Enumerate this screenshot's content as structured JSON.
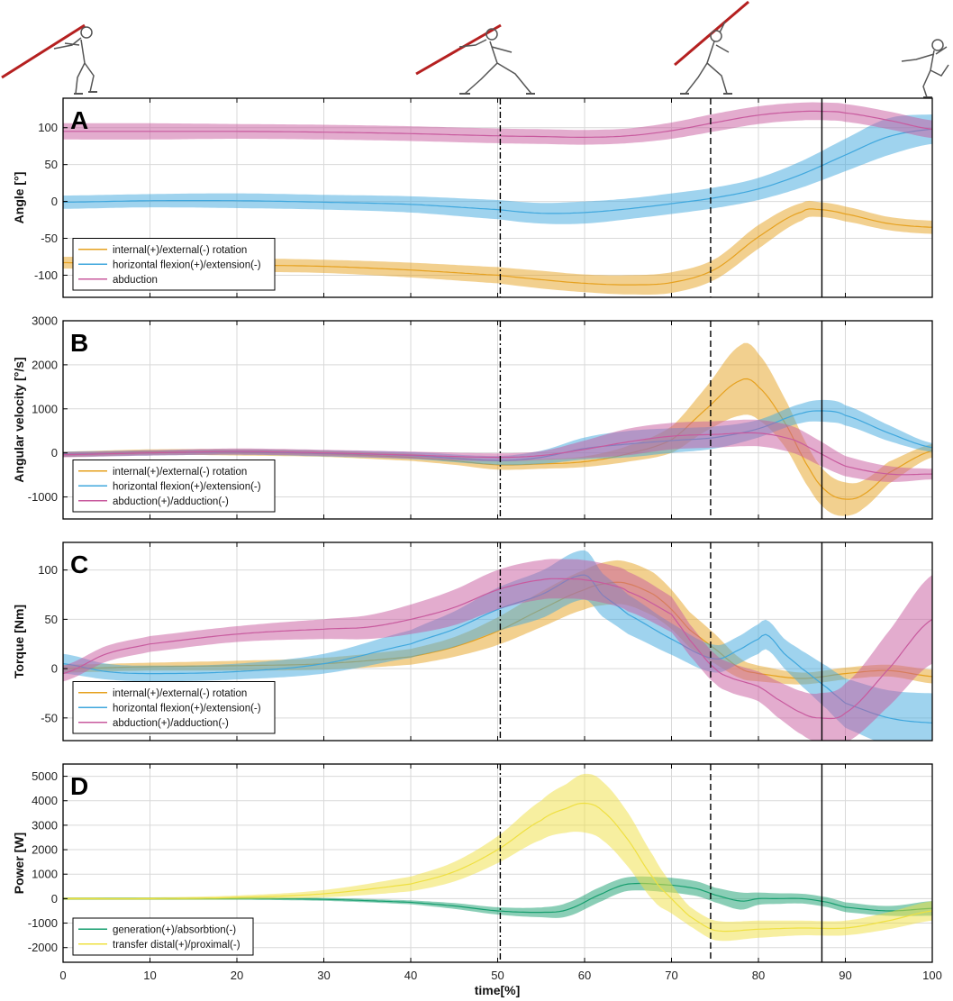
{
  "figure": {
    "xlabel": "time[%]",
    "x_ticks": [
      "0",
      "10",
      "20",
      "30",
      "40",
      "50",
      "60",
      "70",
      "80",
      "90",
      "100"
    ],
    "event_lines": [
      {
        "name": "dash-dot",
        "x": 50.3
      },
      {
        "name": "dashed",
        "x": 74.5
      },
      {
        "name": "solid",
        "x": 87.3
      }
    ],
    "thrower_figures": [
      "thrower-figure-start",
      "thrower-figure-plant",
      "thrower-figure-delivery",
      "thrower-figure-release"
    ]
  },
  "colors": {
    "orange": "#E6A11F",
    "blue": "#3FA7DD",
    "pink": "#C85A9E",
    "green": "#169E6E",
    "yellow": "#EFE041"
  },
  "chart_data": [
    {
      "type": "area",
      "label": "A",
      "ylabel": "Angle [°]",
      "ylim": [
        -130,
        140
      ],
      "y_ticks": [
        100,
        50,
        0,
        -50,
        -100
      ],
      "legend": "bottom-left",
      "series": [
        {
          "name": "internal(+)/external(-) rotation",
          "color": "orange",
          "x": [
            0,
            10,
            20,
            30,
            40,
            50,
            55,
            60,
            65,
            70,
            75,
            80,
            85,
            87,
            90,
            95,
            100
          ],
          "values": [
            -83,
            -84,
            -86,
            -88,
            -93,
            -100,
            -106,
            -111,
            -113,
            -110,
            -92,
            -48,
            -14,
            -11,
            -17,
            -30,
            -35
          ],
          "band": [
            8,
            8,
            9,
            9,
            10,
            11,
            12,
            12,
            13,
            14,
            14,
            16,
            12,
            10,
            10,
            9,
            9
          ]
        },
        {
          "name": "horizontal flexion(+)/extension(-)",
          "color": "blue",
          "x": [
            0,
            10,
            20,
            30,
            40,
            50,
            55,
            60,
            65,
            70,
            75,
            80,
            85,
            90,
            95,
            100
          ],
          "values": [
            -1,
            1,
            1,
            -1,
            -4,
            -11,
            -16,
            -15,
            -10,
            -3,
            5,
            17,
            37,
            63,
            88,
            98
          ],
          "band": [
            9,
            9,
            10,
            10,
            11,
            13,
            14,
            15,
            14,
            14,
            14,
            15,
            18,
            22,
            25,
            20
          ]
        },
        {
          "name": "abduction",
          "color": "pink",
          "x": [
            0,
            10,
            20,
            30,
            40,
            50,
            55,
            60,
            65,
            70,
            75,
            80,
            85,
            88,
            90,
            95,
            100
          ],
          "values": [
            95,
            95,
            95,
            94,
            92,
            89,
            88,
            87,
            89,
            96,
            107,
            117,
            122,
            122,
            120,
            110,
            98
          ],
          "band": [
            11,
            11,
            10,
            10,
            10,
            10,
            10,
            10,
            10,
            11,
            12,
            12,
            12,
            12,
            12,
            12,
            12
          ]
        }
      ]
    },
    {
      "type": "area",
      "label": "B",
      "ylabel": "Angular velocity [°/s]",
      "ylim": [
        -1500,
        3000
      ],
      "y_ticks": [
        3000,
        2000,
        1000,
        0,
        -1000
      ],
      "legend": "bottom-left",
      "series": [
        {
          "name": "internal(+)/external(-) rotation",
          "color": "orange",
          "x": [
            0,
            10,
            20,
            30,
            40,
            45,
            50,
            55,
            60,
            65,
            70,
            74,
            78,
            80,
            83,
            86,
            88,
            90,
            92,
            95,
            100
          ],
          "values": [
            -30,
            20,
            10,
            -20,
            -100,
            -180,
            -270,
            -250,
            -200,
            -20,
            300,
            1000,
            1650,
            1500,
            700,
            -400,
            -900,
            -1050,
            -950,
            -450,
            50
          ],
          "band": [
            60,
            60,
            70,
            70,
            80,
            90,
            110,
            110,
            120,
            180,
            300,
            500,
            800,
            750,
            550,
            450,
            420,
            380,
            320,
            250,
            150
          ]
        },
        {
          "name": "horizontal flexion(+)/extension(-)",
          "color": "blue",
          "x": [
            0,
            10,
            20,
            30,
            40,
            50,
            55,
            60,
            65,
            70,
            75,
            80,
            85,
            88,
            90,
            95,
            100
          ],
          "values": [
            -30,
            0,
            20,
            -10,
            -60,
            -170,
            -100,
            100,
            200,
            280,
            350,
            550,
            900,
            950,
            850,
            450,
            120
          ],
          "band": [
            60,
            60,
            60,
            70,
            80,
            100,
            150,
            250,
            300,
            280,
            250,
            200,
            220,
            250,
            230,
            180,
            100
          ]
        },
        {
          "name": "abduction(+)/adduction(-)",
          "color": "pink",
          "x": [
            0,
            10,
            20,
            30,
            40,
            50,
            55,
            60,
            65,
            70,
            75,
            80,
            84,
            87,
            90,
            95,
            100
          ],
          "values": [
            -40,
            0,
            30,
            0,
            -50,
            -100,
            -60,
            80,
            250,
            380,
            420,
            450,
            300,
            0,
            -300,
            -480,
            -480
          ],
          "band": [
            60,
            60,
            70,
            70,
            80,
            90,
            100,
            200,
            300,
            300,
            300,
            300,
            300,
            280,
            230,
            180,
            120
          ]
        }
      ]
    },
    {
      "type": "area",
      "label": "C",
      "ylabel": "Torque [Nm]",
      "ylim": [
        -73,
        128
      ],
      "y_ticks": [
        100,
        50,
        0,
        -50
      ],
      "legend": "bottom-left",
      "series": [
        {
          "name": "internal(+)/external(-) rotation",
          "color": "orange",
          "x": [
            0,
            10,
            20,
            30,
            40,
            45,
            50,
            55,
            60,
            63,
            65,
            68,
            70,
            72,
            75,
            78,
            80,
            85,
            90,
            95,
            100
          ],
          "values": [
            0,
            2,
            3,
            5,
            12,
            22,
            38,
            60,
            80,
            87,
            86,
            75,
            60,
            40,
            20,
            0,
            -5,
            -10,
            -5,
            -2,
            -8
          ],
          "band": [
            4,
            4,
            5,
            6,
            8,
            10,
            14,
            18,
            20,
            22,
            22,
            22,
            20,
            18,
            15,
            10,
            8,
            6,
            6,
            6,
            7
          ]
        },
        {
          "name": "horizontal flexion(+)/extension(-)",
          "color": "blue",
          "x": [
            0,
            5,
            10,
            20,
            30,
            40,
            45,
            50,
            55,
            60,
            62,
            65,
            70,
            75,
            78,
            80,
            81,
            83,
            85,
            88,
            90,
            95,
            100
          ],
          "values": [
            5,
            -3,
            -5,
            -3,
            5,
            25,
            40,
            60,
            75,
            95,
            75,
            55,
            30,
            10,
            20,
            30,
            34,
            15,
            0,
            -20,
            -35,
            -50,
            -55
          ],
          "band": [
            10,
            8,
            8,
            8,
            10,
            14,
            18,
            22,
            24,
            25,
            22,
            20,
            16,
            14,
            14,
            15,
            15,
            15,
            18,
            22,
            25,
            28,
            30
          ]
        },
        {
          "name": "abduction(+)/adduction(-)",
          "color": "pink",
          "x": [
            0,
            5,
            10,
            20,
            30,
            35,
            40,
            45,
            50,
            55,
            58,
            60,
            63,
            65,
            70,
            72,
            75,
            77,
            80,
            82,
            85,
            87,
            90,
            95,
            100
          ],
          "values": [
            -5,
            15,
            25,
            35,
            40,
            42,
            50,
            62,
            80,
            90,
            91,
            90,
            85,
            78,
            55,
            30,
            0,
            -10,
            -18,
            -30,
            -45,
            -50,
            -45,
            0,
            50
          ],
          "band": [
            8,
            8,
            8,
            8,
            10,
            12,
            15,
            18,
            20,
            20,
            20,
            20,
            20,
            20,
            18,
            16,
            15,
            15,
            15,
            18,
            22,
            25,
            30,
            38,
            45
          ]
        }
      ]
    },
    {
      "type": "area",
      "label": "D",
      "ylabel": "Power [W]",
      "ylim": [
        -2600,
        5500
      ],
      "y_ticks": [
        5000,
        4000,
        3000,
        2000,
        1000,
        0,
        -1000,
        -2000
      ],
      "legend": "bottom-left",
      "series": [
        {
          "name": "generation(+)/absorbtion(-)",
          "color": "green",
          "x": [
            0,
            10,
            20,
            30,
            40,
            45,
            50,
            55,
            58,
            62,
            65,
            70,
            73,
            75,
            78,
            80,
            82,
            85,
            88,
            90,
            95,
            100
          ],
          "values": [
            0,
            0,
            0,
            -30,
            -150,
            -300,
            -500,
            -560,
            -450,
            200,
            600,
            550,
            400,
            150,
            -100,
            0,
            0,
            0,
            -150,
            -350,
            -500,
            -400
          ],
          "band": [
            50,
            50,
            50,
            60,
            80,
            120,
            150,
            200,
            280,
            300,
            280,
            300,
            300,
            300,
            350,
            250,
            220,
            200,
            200,
            200,
            200,
            300
          ]
        },
        {
          "name": "transfer distal(+)/proximal(-)",
          "color": "yellow",
          "x": [
            0,
            10,
            20,
            30,
            40,
            45,
            50,
            55,
            58,
            60,
            62,
            65,
            68,
            70,
            72,
            75,
            80,
            85,
            90,
            95,
            100
          ],
          "values": [
            0,
            0,
            50,
            200,
            600,
            1100,
            2000,
            3200,
            3700,
            3900,
            3600,
            2400,
            800,
            0,
            -700,
            -1300,
            -1250,
            -1200,
            -1200,
            -900,
            -500
          ],
          "band": [
            50,
            50,
            80,
            150,
            300,
            400,
            550,
            800,
            1000,
            1200,
            1200,
            1100,
            900,
            600,
            400,
            400,
            350,
            300,
            300,
            350,
            400
          ]
        }
      ]
    }
  ]
}
